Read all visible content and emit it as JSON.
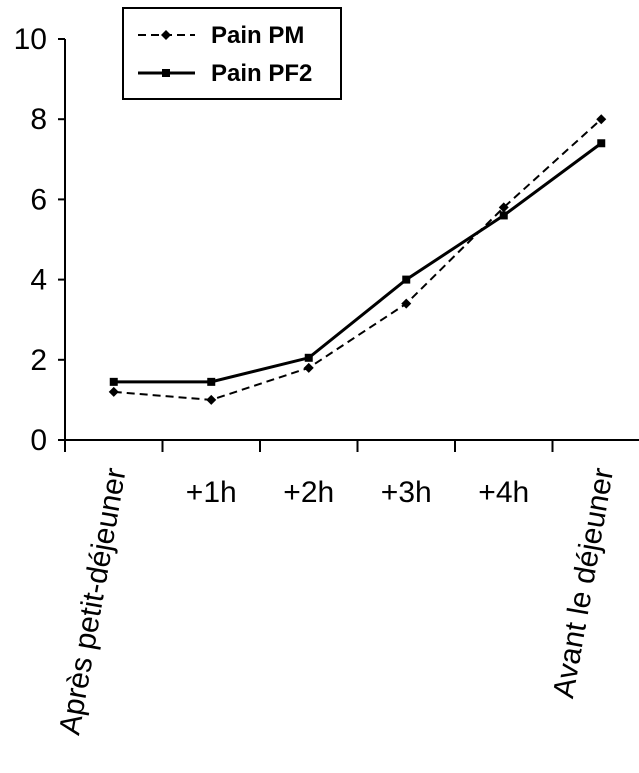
{
  "chart_data": {
    "type": "line",
    "title": "",
    "xlabel": "",
    "ylabel": "",
    "categories": [
      "Après petit-déjeuner",
      "+1h",
      "+2h",
      "+3h",
      "+4h",
      "Avant le déjeuner"
    ],
    "ylim": [
      0,
      10
    ],
    "yticks": [
      "0",
      "2",
      "4",
      "6",
      "8",
      "10"
    ],
    "grid": false,
    "legend_position": "top-left",
    "series": [
      {
        "name": "Pain PM",
        "values": [
          1.2,
          1.0,
          1.8,
          3.4,
          5.8,
          8.0
        ],
        "style": "dashed",
        "marker": "diamond",
        "color": "#000000"
      },
      {
        "name": "Pain PF2",
        "values": [
          1.45,
          1.45,
          2.05,
          4.0,
          5.6,
          7.4
        ],
        "style": "solid",
        "marker": "square",
        "color": "#000000"
      }
    ]
  }
}
